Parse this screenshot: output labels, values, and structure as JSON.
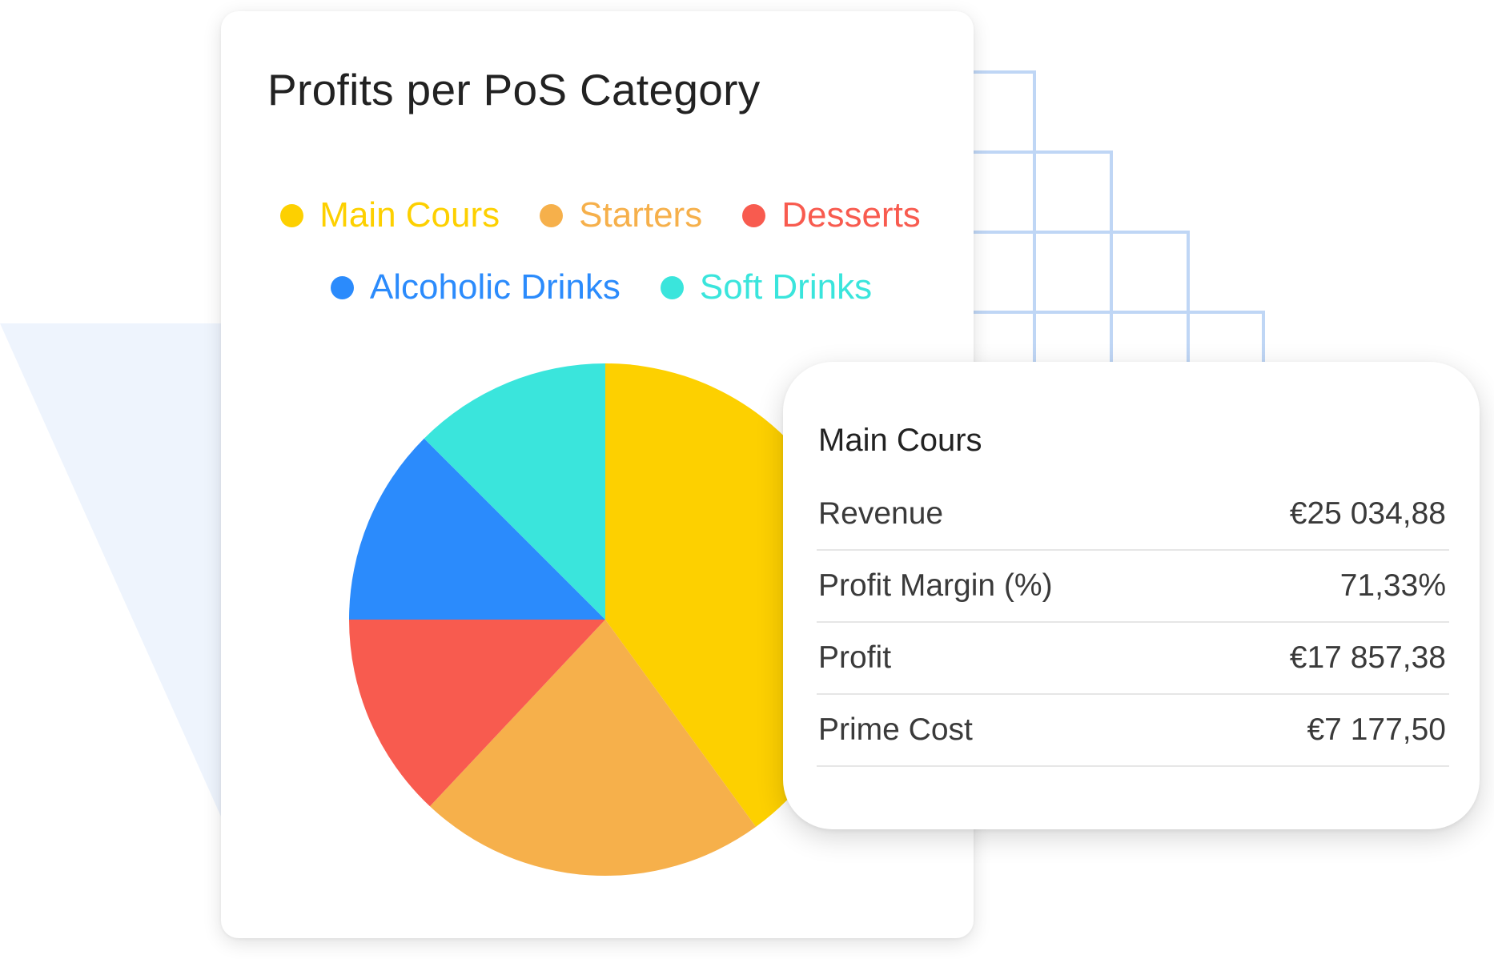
{
  "colors": {
    "background_triangle": "#eef4fd",
    "grid_lines": "#bfd6f5",
    "card_bg": "#ffffff",
    "title_text": "#222222",
    "body_text": "#3a3a3a",
    "divider": "#e6e6e6"
  },
  "chart_data": {
    "type": "pie",
    "title": "Profits per PoS Category",
    "legend_position": "top",
    "slices": [
      {
        "label": "Main Cours",
        "value": 40,
        "color": "#fdd000"
      },
      {
        "label": "Starters",
        "value": 22,
        "color": "#f6b04b"
      },
      {
        "label": "Desserts",
        "value": 13,
        "color": "#f85b4f"
      },
      {
        "label": "Alcoholic Drinks",
        "value": 12.5,
        "color": "#2b8bfc"
      },
      {
        "label": "Soft Drinks",
        "value": 12.5,
        "color": "#3ae5dc"
      }
    ]
  },
  "legend_rows": [
    [
      0,
      1,
      2
    ],
    [
      3,
      4
    ]
  ],
  "tooltip": {
    "title": "Main Cours",
    "rows": [
      {
        "label": "Revenue",
        "value": "€25 034,88"
      },
      {
        "label": "Profit Margin (%)",
        "value": "71,33%"
      },
      {
        "label": "Profit",
        "value": "€17 857,38"
      },
      {
        "label": "Prime Cost",
        "value": "€7 177,50"
      }
    ]
  }
}
